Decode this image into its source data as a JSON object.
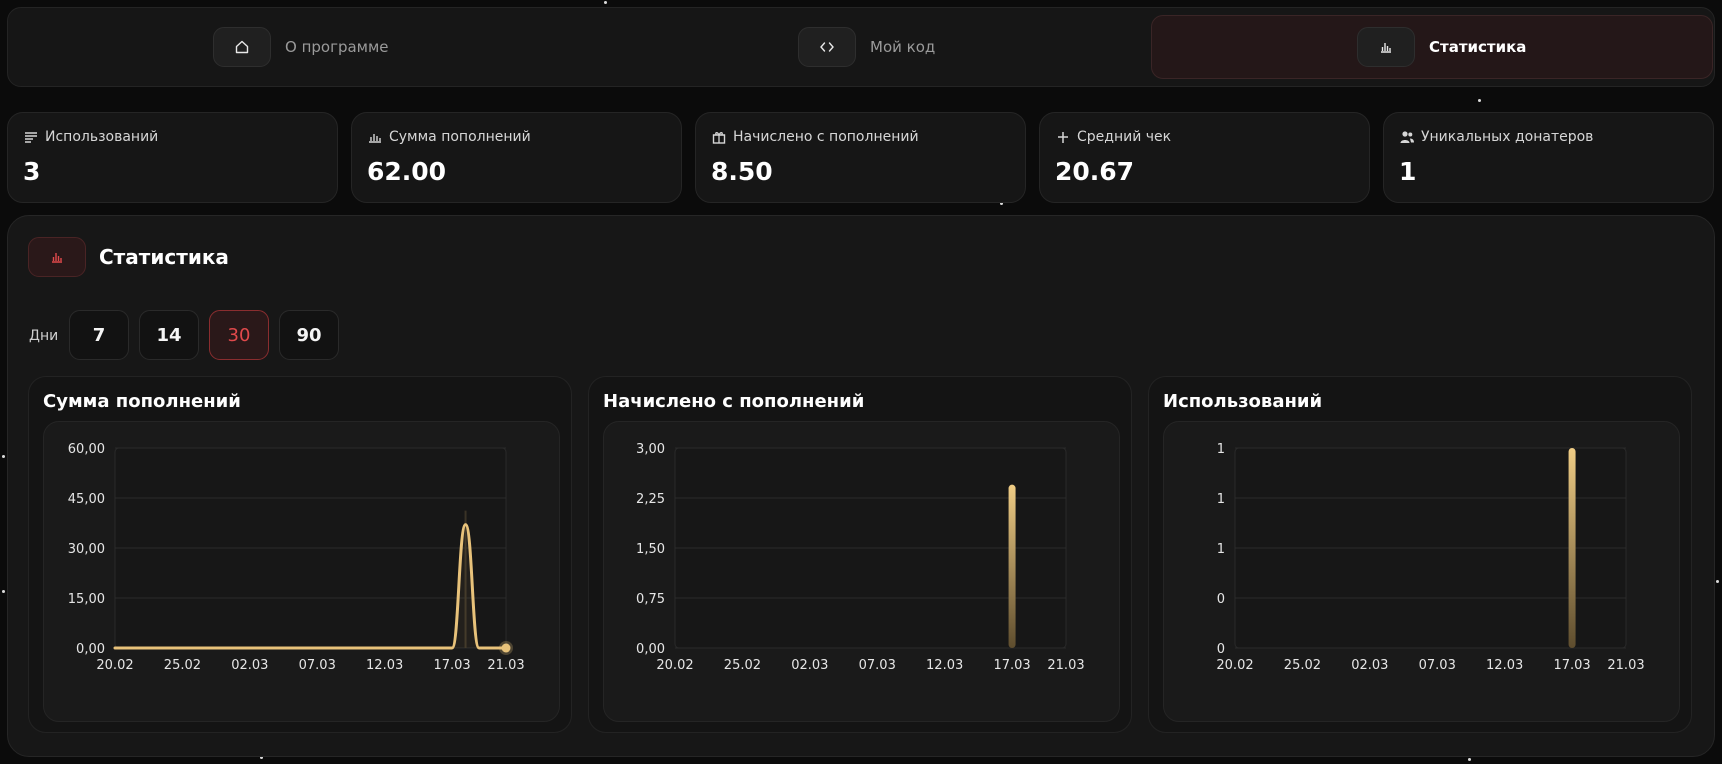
{
  "nav": {
    "items": [
      {
        "label": "О программе",
        "icon": "home-icon",
        "active": false
      },
      {
        "label": "Мой код",
        "icon": "code-icon",
        "active": false
      },
      {
        "label": "Статистика",
        "icon": "bar-chart-icon",
        "active": true
      }
    ]
  },
  "stats": [
    {
      "label": "Использований",
      "value": "3",
      "icon": "list-icon"
    },
    {
      "label": "Сумма пополнений",
      "value": "62.00",
      "icon": "bar-chart-icon"
    },
    {
      "label": "Начислено с пополнений",
      "value": "8.50",
      "icon": "gift-icon"
    },
    {
      "label": "Средний чек",
      "value": "20.67",
      "icon": "plus-icon"
    },
    {
      "label": "Уникальных донатеров",
      "value": "1",
      "icon": "users-icon"
    }
  ],
  "panel": {
    "title": "Статистика",
    "days_label": "Дни",
    "day_options": [
      "7",
      "14",
      "30",
      "90"
    ],
    "selected_day": "30"
  },
  "colors": {
    "accent": "#e0494b",
    "series": "#e8c27a"
  },
  "chart_data": [
    {
      "type": "area",
      "title": "Сумма пополнений",
      "x_ticks": [
        "20.02",
        "25.02",
        "02.03",
        "07.03",
        "12.03",
        "17.03",
        "21.03"
      ],
      "y_ticks": [
        "60,00",
        "45,00",
        "30,00",
        "15,00",
        "0,00"
      ],
      "ylim": [
        0,
        60
      ],
      "xlim": [
        "20.02",
        "21.03"
      ],
      "grid": true,
      "series": [
        {
          "x": [
            "20.02",
            "17.03",
            "18.03",
            "19.03",
            "20.03",
            "21.03"
          ],
          "values": [
            0,
            0,
            37,
            0,
            0,
            0
          ]
        }
      ]
    },
    {
      "type": "bar",
      "title": "Начислено с пополнений",
      "x_ticks": [
        "20.02",
        "25.02",
        "02.03",
        "07.03",
        "12.03",
        "17.03",
        "21.03"
      ],
      "y_ticks": [
        "3,00",
        "2,25",
        "1,50",
        "0,75",
        "0,00"
      ],
      "ylim": [
        0,
        3
      ],
      "xlim": [
        "20.02",
        "21.03"
      ],
      "grid": true,
      "series": [
        {
          "x": [
            "17.03"
          ],
          "values": [
            2.45
          ]
        }
      ]
    },
    {
      "type": "bar",
      "title": "Использований",
      "x_ticks": [
        "20.02",
        "25.02",
        "02.03",
        "07.03",
        "12.03",
        "17.03",
        "21.03"
      ],
      "y_ticks": [
        "1",
        "1",
        "1",
        "0",
        "0"
      ],
      "ylim": [
        0,
        1
      ],
      "xlim": [
        "20.02",
        "21.03"
      ],
      "grid": true,
      "series": [
        {
          "x": [
            "17.03"
          ],
          "values": [
            1
          ]
        }
      ]
    }
  ]
}
